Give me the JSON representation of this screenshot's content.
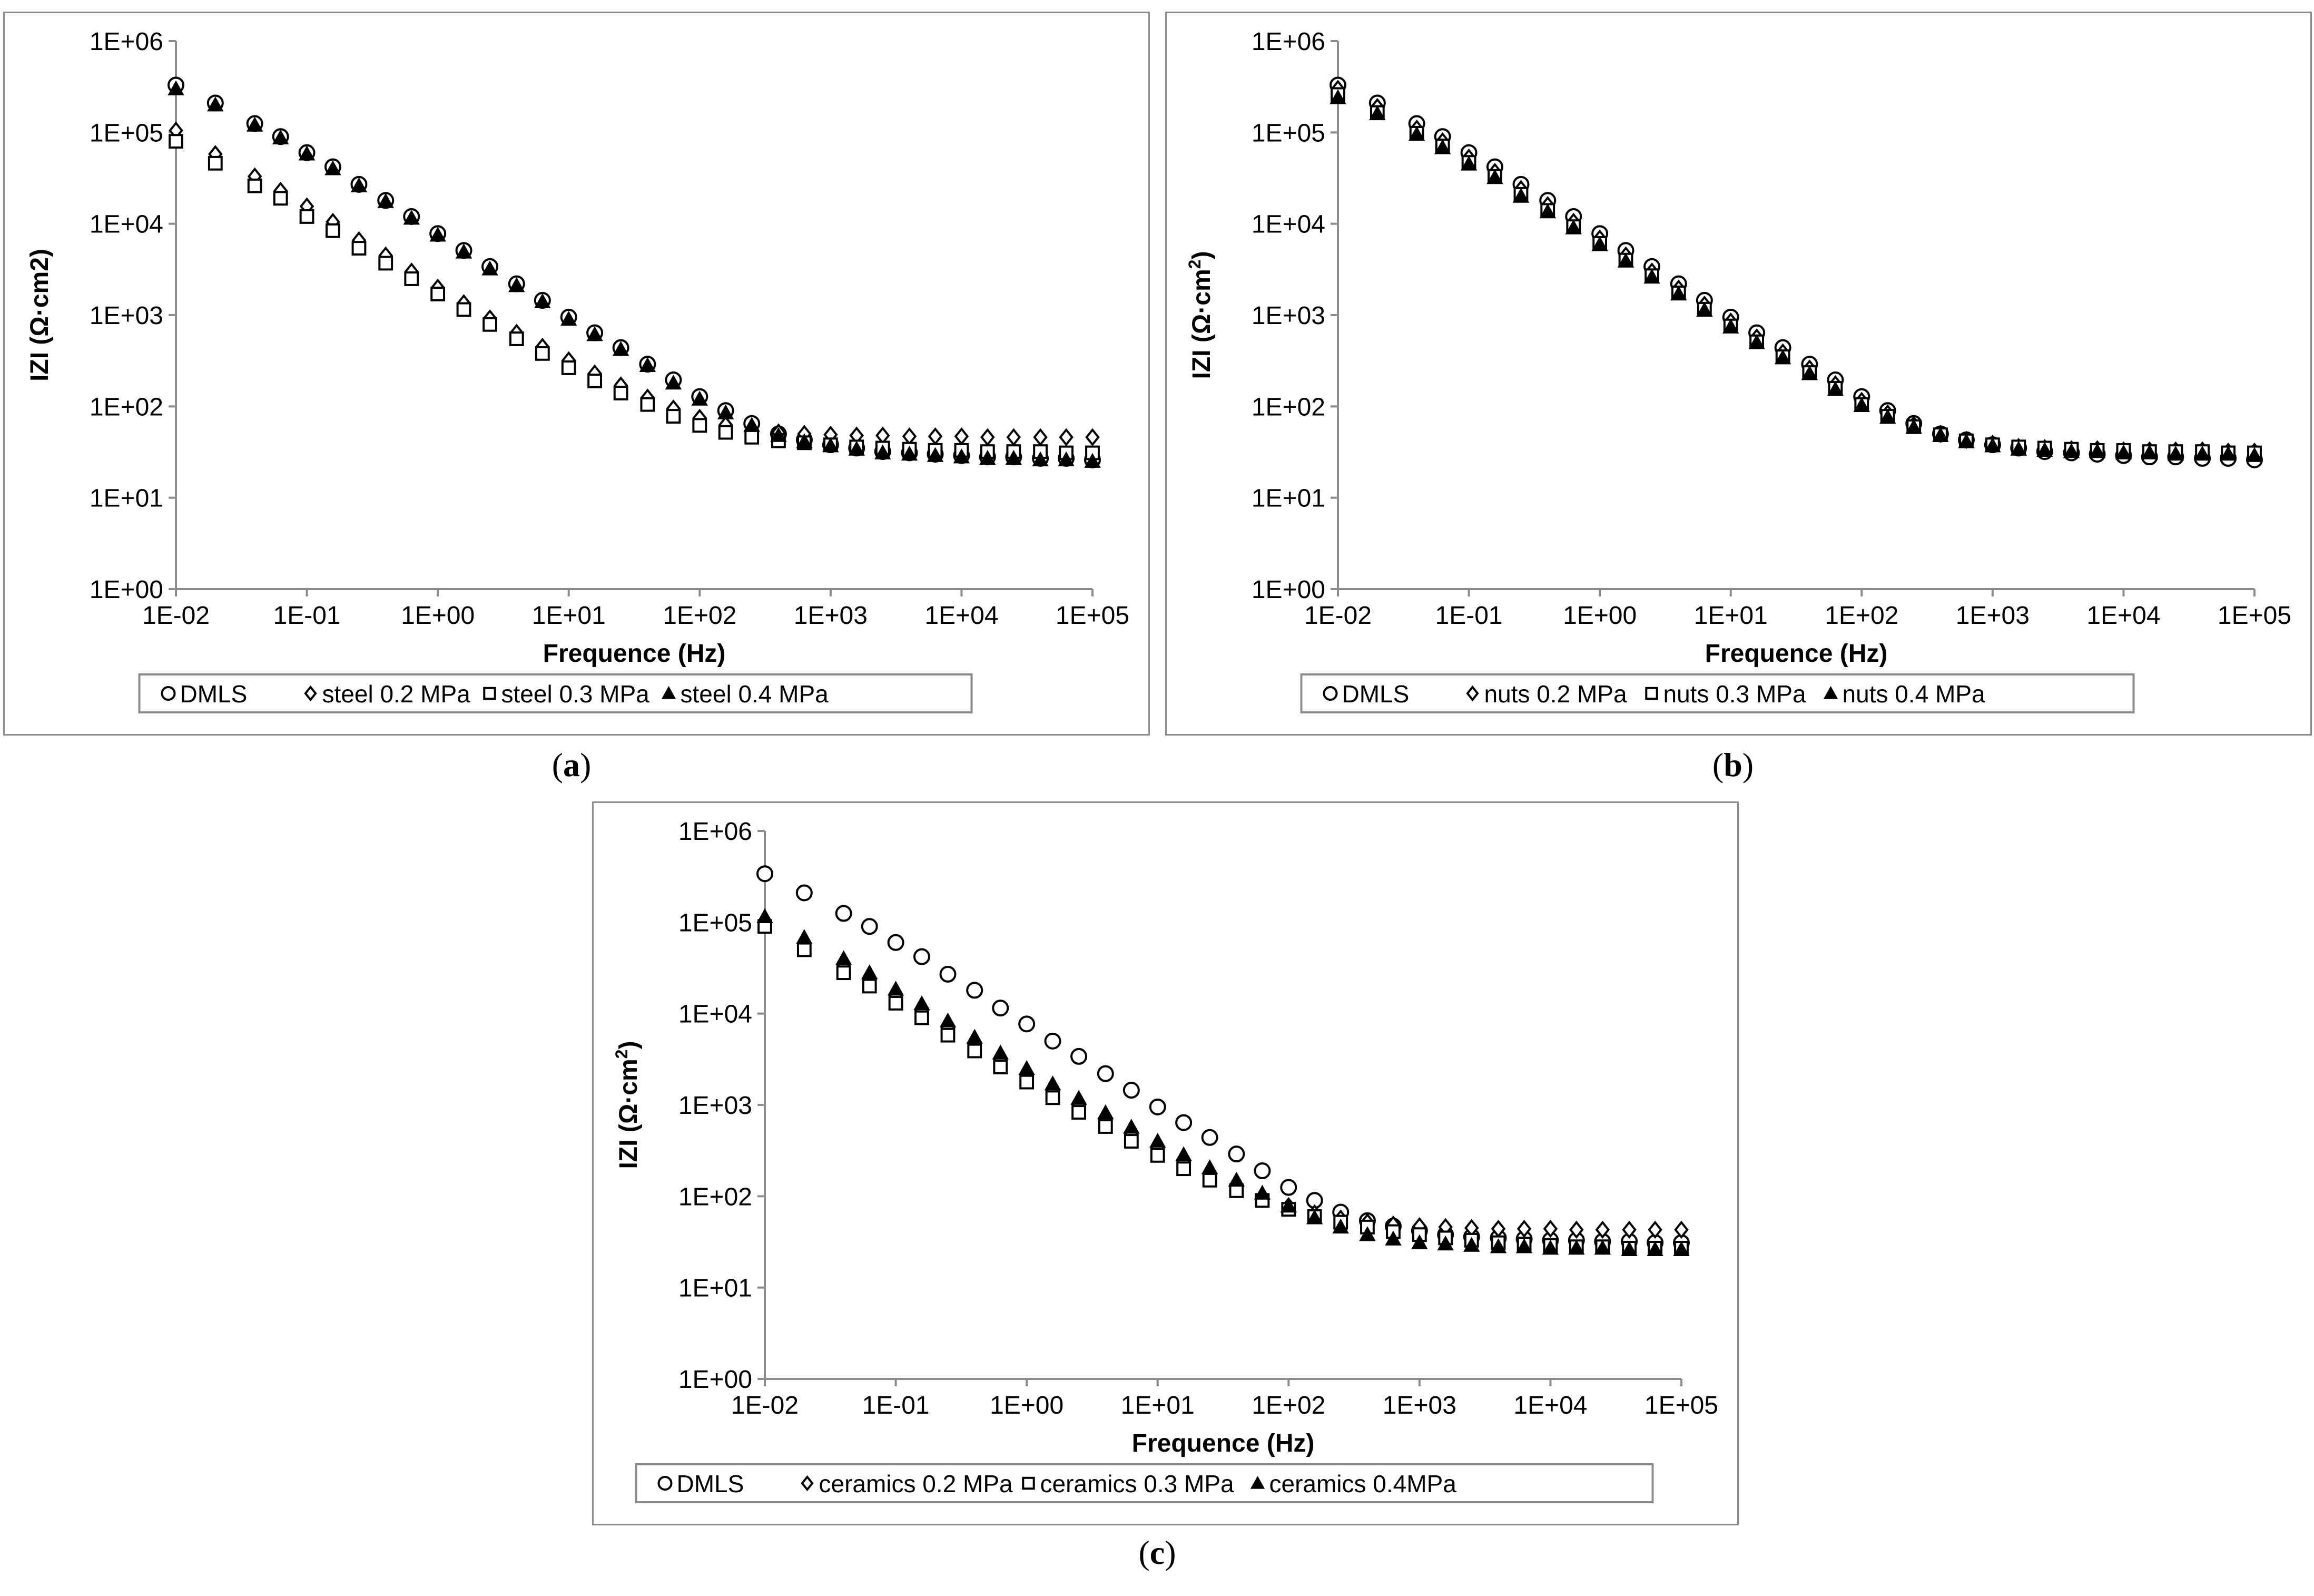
{
  "captions": {
    "a": "a",
    "b": "b",
    "c": "c"
  },
  "chart_data": [
    {
      "id": "a",
      "type": "scatter",
      "xlabel": "Frequence (Hz)",
      "ylabel": "IZI (Ω·cm2)",
      "ylabel_superscript": "",
      "x_scale": "log",
      "y_scale": "log",
      "xlim": [
        0.01,
        100000
      ],
      "ylim": [
        1,
        1000000
      ],
      "x_tick_labels": [
        "1E-02",
        "1E-01",
        "1E+00",
        "1E+01",
        "1E+02",
        "1E+03",
        "1E+04",
        "1E+05"
      ],
      "y_tick_labels": [
        "1E+00",
        "1E+01",
        "1E+02",
        "1E+03",
        "1E+04",
        "1E+05",
        "1E+06"
      ],
      "grid": false,
      "legend_position": "bottom",
      "x": [
        0.01,
        0.02,
        0.04,
        0.063,
        0.1,
        0.158,
        0.25,
        0.4,
        0.63,
        1,
        1.58,
        2.5,
        4,
        6.3,
        10,
        15.8,
        25,
        40,
        63,
        100,
        158,
        250,
        400,
        630,
        1000,
        1580,
        2500,
        4000,
        6300,
        10000,
        15800,
        25000,
        40000,
        63000,
        100000
      ],
      "series": [
        {
          "name": "DMLS",
          "marker": "circle",
          "values": [
            330000,
            210000,
            125000,
            90000,
            60000,
            42000,
            27000,
            18000,
            12000,
            7800,
            5100,
            3400,
            2200,
            1450,
            950,
            640,
            440,
            290,
            195,
            128,
            90,
            65,
            50,
            43,
            38,
            35,
            32,
            31,
            30,
            29,
            28,
            28,
            27,
            27,
            26
          ]
        },
        {
          "name": "steel 0.2 MPa",
          "marker": "diamond",
          "values": [
            105000,
            58000,
            33000,
            23000,
            15500,
            10500,
            6600,
            4500,
            3000,
            2000,
            1350,
            920,
            640,
            450,
            320,
            230,
            170,
            125,
            95,
            75,
            63,
            56,
            52,
            50,
            49,
            48,
            48,
            47,
            47,
            47,
            46,
            46,
            46,
            46,
            46
          ]
        },
        {
          "name": "steel 0.3 MPa",
          "marker": "square",
          "values": [
            80000,
            46000,
            26000,
            19000,
            12000,
            8400,
            5400,
            3700,
            2500,
            1700,
            1150,
            790,
            550,
            380,
            265,
            190,
            140,
            105,
            78,
            62,
            52,
            46,
            42,
            40,
            38,
            36,
            35,
            34,
            33,
            33,
            32,
            32,
            32,
            31,
            31
          ]
        },
        {
          "name": "steel 0.4 MPa",
          "marker": "triangle",
          "values": [
            300000,
            200000,
            120000,
            87000,
            58000,
            40000,
            26000,
            17500,
            11500,
            7500,
            4900,
            3200,
            2100,
            1400,
            900,
            610,
            420,
            280,
            180,
            120,
            85,
            62,
            48,
            41,
            37,
            34,
            31,
            30,
            29,
            28,
            27,
            27,
            26,
            26,
            25
          ]
        }
      ]
    },
    {
      "id": "b",
      "type": "scatter",
      "xlabel": "Frequence (Hz)",
      "ylabel": "IZI (Ω·cm",
      "ylabel_superscript": "2",
      "ylabel_suffix": ")",
      "x_scale": "log",
      "y_scale": "log",
      "xlim": [
        0.01,
        100000
      ],
      "ylim": [
        1,
        1000000
      ],
      "x_tick_labels": [
        "1E-02",
        "1E-01",
        "1E+00",
        "1E+01",
        "1E+02",
        "1E+03",
        "1E+04",
        "1E+05"
      ],
      "y_tick_labels": [
        "1E+00",
        "1E+01",
        "1E+02",
        "1E+03",
        "1E+04",
        "1E+05",
        "1E+06"
      ],
      "grid": false,
      "legend_position": "bottom",
      "x": [
        0.01,
        0.02,
        0.04,
        0.063,
        0.1,
        0.158,
        0.25,
        0.4,
        0.63,
        1,
        1.58,
        2.5,
        4,
        6.3,
        10,
        15.8,
        25,
        40,
        63,
        100,
        158,
        250,
        400,
        630,
        1000,
        1580,
        2500,
        4000,
        6300,
        10000,
        15800,
        25000,
        40000,
        63000,
        100000
      ],
      "series": [
        {
          "name": "DMLS",
          "marker": "circle",
          "values": [
            330000,
            210000,
            125000,
            90000,
            60000,
            42000,
            27000,
            18000,
            12000,
            7800,
            5100,
            3400,
            2200,
            1450,
            950,
            640,
            440,
            290,
            195,
            128,
            90,
            65,
            50,
            43,
            38,
            35,
            32,
            31,
            30,
            29,
            28,
            28,
            27,
            27,
            26
          ]
        },
        {
          "name": "nuts 0.2 MPa",
          "marker": "diamond",
          "values": [
            300000,
            190000,
            110000,
            80000,
            53000,
            37000,
            24000,
            16000,
            10500,
            6900,
            4500,
            3000,
            1950,
            1300,
            850,
            570,
            390,
            260,
            175,
            115,
            84,
            63,
            50,
            43,
            39,
            36,
            35,
            34,
            34,
            33,
            33,
            33,
            33,
            32,
            32
          ]
        },
        {
          "name": "nuts 0.3 MPa",
          "marker": "square",
          "values": [
            260000,
            165000,
            98000,
            71000,
            47000,
            33000,
            21000,
            14000,
            9300,
            6100,
            4000,
            2700,
            1750,
            1160,
            760,
            510,
            350,
            235,
            158,
            105,
            78,
            60,
            49,
            42,
            38,
            36,
            35,
            34,
            33,
            33,
            32,
            32,
            32,
            31,
            31
          ]
        },
        {
          "name": "nuts 0.4 MPa",
          "marker": "triangle",
          "values": [
            240000,
            160000,
            95000,
            68000,
            45000,
            32000,
            20000,
            13500,
            9000,
            5900,
            3900,
            2600,
            1700,
            1130,
            740,
            500,
            340,
            228,
            153,
            102,
            76,
            59,
            48,
            41,
            37,
            34,
            33,
            32,
            32,
            31,
            31,
            30,
            30,
            30,
            29
          ]
        }
      ]
    },
    {
      "id": "c",
      "type": "scatter",
      "xlabel": "Frequence (Hz)",
      "ylabel": "IZI (Ω·cm",
      "ylabel_superscript": "2",
      "ylabel_suffix": ")",
      "x_scale": "log",
      "y_scale": "log",
      "xlim": [
        0.01,
        100000
      ],
      "ylim": [
        1,
        1000000
      ],
      "x_tick_labels": [
        "1E-02",
        "1E-01",
        "1E+00",
        "1E+01",
        "1E+02",
        "1E+03",
        "1E+04",
        "1E+05"
      ],
      "y_tick_labels": [
        "1E+00",
        "1E+01",
        "1E+02",
        "1E+03",
        "1E+04",
        "1E+05",
        "1E+06"
      ],
      "grid": false,
      "legend_position": "bottom",
      "x": [
        0.01,
        0.02,
        0.04,
        0.063,
        0.1,
        0.158,
        0.25,
        0.4,
        0.63,
        1,
        1.58,
        2.5,
        4,
        6.3,
        10,
        15.8,
        25,
        40,
        63,
        100,
        158,
        250,
        400,
        630,
        1000,
        1580,
        2500,
        4000,
        6300,
        10000,
        15800,
        25000,
        40000,
        63000,
        100000
      ],
      "series": [
        {
          "name": "DMLS",
          "marker": "circle",
          "values": [
            340000,
            210000,
            125000,
            90000,
            60000,
            42000,
            27000,
            18000,
            11500,
            7700,
            5000,
            3400,
            2200,
            1450,
            950,
            640,
            440,
            290,
            190,
            125,
            90,
            67,
            54,
            47,
            42,
            38,
            36,
            35,
            34,
            33,
            33,
            32,
            32,
            31,
            31
          ]
        },
        {
          "name": "ceramics 0.2 MPa",
          "marker": "diamond",
          "values": [
            100000,
            56000,
            33000,
            23500,
            15500,
            10800,
            7000,
            4700,
            3100,
            2100,
            1450,
            1000,
            700,
            480,
            340,
            240,
            175,
            130,
            98,
            78,
            65,
            57,
            52,
            49,
            47,
            46,
            45,
            44,
            44,
            44,
            43,
            43,
            43,
            43,
            43
          ]
        },
        {
          "name": "ceramics 0.3 MPa",
          "marker": "square",
          "values": [
            90000,
            50000,
            28000,
            20000,
            13000,
            9000,
            5800,
            3900,
            2600,
            1780,
            1200,
            830,
            580,
            400,
            280,
            200,
            150,
            115,
            90,
            72,
            60,
            52,
            46,
            41,
            38,
            35,
            33,
            31,
            30,
            29,
            28,
            28,
            27,
            27,
            27
          ]
        },
        {
          "name": "ceramics 0.4MPa",
          "marker": "triangle",
          "values": [
            115000,
            68000,
            40000,
            28000,
            18500,
            12800,
            8300,
            5500,
            3700,
            2500,
            1700,
            1180,
            820,
            570,
            400,
            285,
            205,
            150,
            108,
            78,
            58,
            46,
            38,
            34,
            31,
            30,
            29,
            28,
            28,
            27,
            27,
            27,
            26,
            26,
            26
          ]
        }
      ]
    }
  ]
}
